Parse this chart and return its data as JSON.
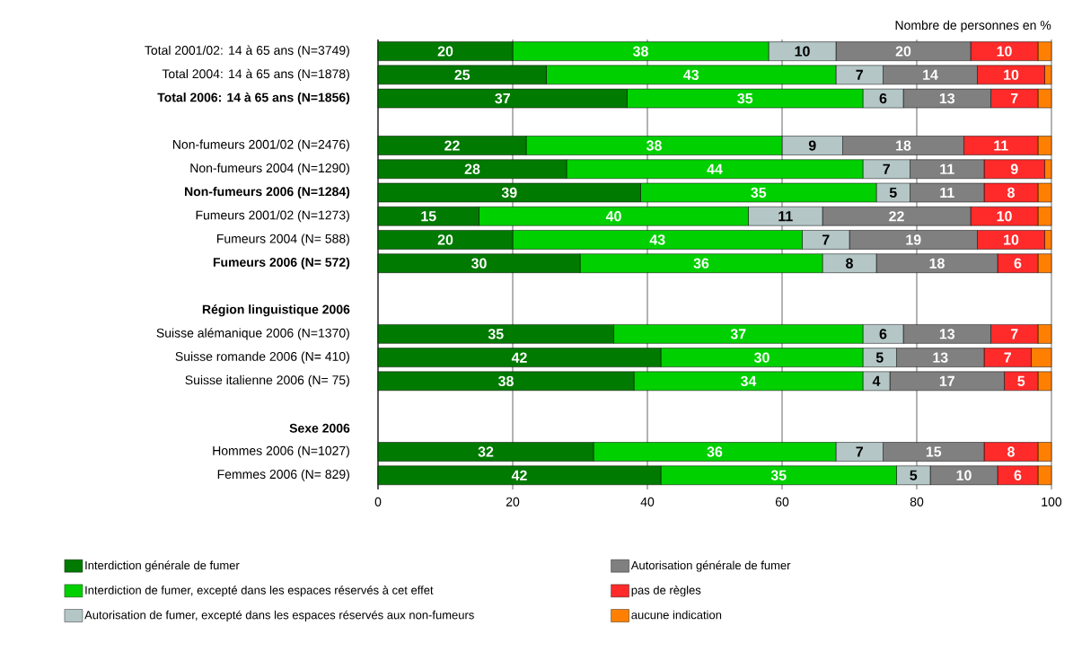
{
  "chart_data": {
    "type": "bar",
    "orientation": "horizontal",
    "stacked": true,
    "title": "Nombre de personnes en %",
    "categories": [
      "Total 2001/02: 14 à 65 ans (N=3749)",
      "Total 2004: 14 à 65 ans (N=1878)",
      "**Total 2006: 14 à 65 ans (N=1856)**",
      null,
      "Non-fumeurs 2001/02 (N=2476)",
      "Non-fumeurs 2004 (N=1290)",
      "**Non-fumeurs 2006 (N=1284)**",
      "Fumeurs 2001/02 (N=1273)",
      "Fumeurs 2004 (N= 588)",
      "**Fumeurs 2006 (N= 572)**",
      null,
      "**Région linguistique 2006**",
      "Suisse alémanique 2006 (N=1370)",
      "Suisse romande 2006 (N= 410)",
      "Suisse italienne 2006 (N= 75)",
      null,
      "**Sexe 2006**",
      "Hommes 2006 (N=1027)",
      "Femmes 2006 (N= 829)"
    ],
    "series": [
      {
        "name": "Interdiction générale de fumer",
        "color": "#007a00",
        "values": [
          20,
          25,
          37,
          null,
          22,
          28,
          39,
          15,
          20,
          30,
          null,
          null,
          35,
          42,
          38,
          null,
          null,
          32,
          42
        ],
        "value_labels": [
          "20",
          "25",
          "37",
          null,
          "22",
          "28",
          "39",
          "15",
          "20",
          "30",
          null,
          null,
          "35",
          "42",
          "38",
          null,
          null,
          "32",
          "42"
        ]
      },
      {
        "name": "Interdiction de fumer, excepté dans les espaces réservés à cet effet",
        "color": "#00d000",
        "values": [
          38,
          43,
          35,
          null,
          38,
          44,
          35,
          40,
          43,
          36,
          null,
          null,
          37,
          30,
          34,
          null,
          null,
          36,
          35
        ],
        "value_labels": [
          "38",
          "43",
          "35",
          null,
          "38",
          "44",
          "35",
          "40",
          "43",
          "36",
          null,
          null,
          "37",
          "30",
          "34",
          null,
          null,
          "36",
          "35"
        ]
      },
      {
        "name": "Autorisation de fumer, excepté dans les espaces réservés aux non-fumeurs",
        "color": "#b4c6c6",
        "values": [
          10,
          7,
          6,
          null,
          9,
          7,
          5,
          11,
          7,
          8,
          null,
          null,
          6,
          5,
          4,
          null,
          null,
          7,
          5
        ],
        "value_labels": [
          "10",
          "7",
          "6",
          null,
          "9",
          "7",
          "5",
          "11",
          "7",
          "8",
          null,
          null,
          "6",
          "5",
          "4",
          null,
          null,
          "7",
          "5"
        ]
      },
      {
        "name": "Autorisation générale de fumer",
        "color": "#808080",
        "values": [
          20,
          14,
          13,
          null,
          18,
          11,
          11,
          22,
          19,
          18,
          null,
          null,
          13,
          13,
          17,
          null,
          null,
          15,
          10
        ],
        "value_labels": [
          "20",
          "14",
          "13",
          null,
          "18",
          "11",
          "11",
          "22",
          "19",
          "18",
          null,
          null,
          "13",
          "13",
          "17",
          null,
          null,
          "15",
          "10"
        ]
      },
      {
        "name": "pas de règles",
        "color": "#ff2a2a",
        "values": [
          10,
          10,
          7,
          null,
          11,
          9,
          8,
          10,
          10,
          6,
          null,
          null,
          7,
          7,
          5,
          null,
          null,
          8,
          6
        ],
        "value_labels": [
          "10",
          "10",
          "7",
          null,
          "11",
          "9",
          "8",
          "10",
          "10",
          "6",
          null,
          null,
          "7",
          "7",
          "5",
          null,
          null,
          "8",
          "6"
        ]
      },
      {
        "name": "aucune indication",
        "color": "#ff8000",
        "values": [
          2,
          1,
          2,
          null,
          2,
          1,
          2,
          2,
          1,
          2,
          null,
          null,
          2,
          3,
          2,
          null,
          null,
          2,
          2
        ]
      }
    ],
    "xlim": [
      0,
      100
    ],
    "xticks": [
      0,
      20,
      40,
      60,
      80,
      100
    ],
    "grid": "x",
    "legend": "bottom"
  }
}
